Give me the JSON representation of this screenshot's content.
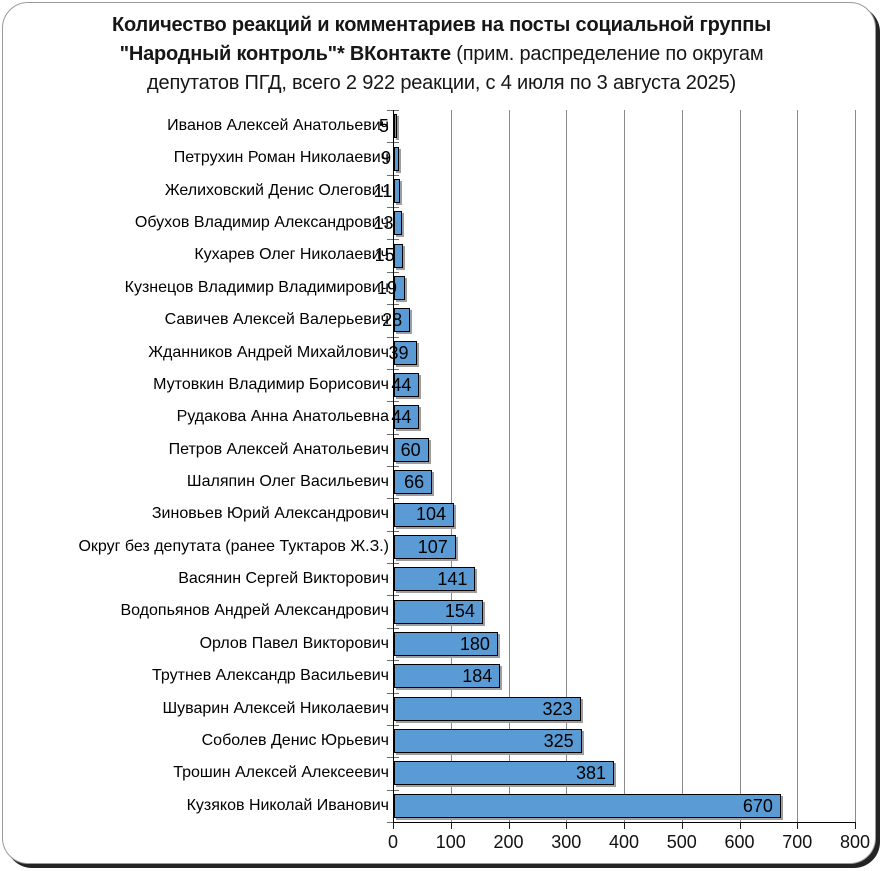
{
  "title": {
    "line1_bold": "Количество реакций и комментариев на посты социальной группы",
    "line2_bold": "\"Народный контроль\"* ВКонтакте",
    "line2_regular": "(прим. распределение по округам",
    "line3_regular": "депутатов ПГД, всего 2 922 реакции, с 4 июля по 3 августа 2025)"
  },
  "chart_data": {
    "type": "bar",
    "orientation": "horizontal",
    "title": "Количество реакций и комментариев на посты социальной группы \"Народный контроль\"* ВКонтакте (прим. распределение по округам депутатов ПГД, всего 2 922 реакции, с 4 июля по 3 августа 2025)",
    "total_reactions": "2 922",
    "categories": [
      "Иванов Алексей Анатольевич",
      "Петрухин Роман Николаевич",
      "Желиховский Денис Олегович",
      "Обухов Владимир Александрович",
      "Кухарев Олег Николаевич",
      "Кузнецов Владимир Владимирович",
      "Савичев Алексей Валерьевич",
      "Жданников Андрей Михайлович",
      "Мутовкин Владимир Борисович",
      "Рудакова Анна Анатольевна",
      "Петров Алексей Анатольевич",
      "Шаляпин Олег Васильевич",
      "Зиновьев Юрий Александрович",
      "Округ без депутата (ранее Туктаров Ж.З.)",
      "Васянин Сергей Викторович",
      "Водопьянов Андрей Александрович",
      "Орлов Павел Викторович",
      "Трутнев Александр Васильевич",
      "Шуварин Алексей Николаевич",
      "Соболев Денис Юрьевич",
      "Трошин Алексей Алексеевич",
      "Кузяков Николай Иванович"
    ],
    "values": [
      5,
      9,
      11,
      13,
      15,
      19,
      28,
      39,
      44,
      44,
      60,
      66,
      104,
      107,
      141,
      154,
      180,
      184,
      323,
      325,
      381,
      670
    ],
    "xlabel": "",
    "ylabel": "",
    "xlim": [
      0,
      800
    ],
    "x_tick_labels": [
      "0",
      "100",
      "200",
      "300",
      "400",
      "500",
      "600",
      "700",
      "800"
    ],
    "grid": true,
    "legend": "none",
    "colors": {
      "bar_fill": "#5B9BD5",
      "bar_border": "#000000",
      "bar_shadow": "#9e9e9e",
      "gridline": "#8a8a8a",
      "axis": "#000000",
      "text": "#000000",
      "frame_border": "#9a9a9a",
      "frame_shadow": "#242424"
    }
  }
}
